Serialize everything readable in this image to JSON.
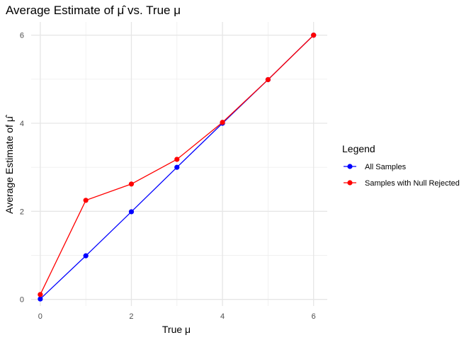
{
  "chart_data": {
    "type": "line",
    "title": "Average Estimate of μ̂ vs. True μ",
    "xlabel": "True μ",
    "ylabel": "Average Estimate of μ̂",
    "xlim": [
      -0.2,
      6.3
    ],
    "ylim": [
      -0.15,
      6.3
    ],
    "xticks": [
      0,
      2,
      4,
      6
    ],
    "yticks": [
      0,
      2,
      4,
      6
    ],
    "grid": true,
    "legend": {
      "title": "Legend",
      "position": "right"
    },
    "series": [
      {
        "name": "All Samples",
        "color": "#0000ff",
        "x": [
          0,
          1,
          2,
          3,
          4,
          5,
          6
        ],
        "y": [
          0.01,
          0.99,
          1.99,
          3.0,
          4.0,
          4.99,
          6.0
        ]
      },
      {
        "name": "Samples with Null Rejected",
        "color": "#ff0000",
        "x": [
          0,
          1,
          2,
          3,
          4,
          5,
          6
        ],
        "y": [
          0.11,
          2.25,
          2.62,
          3.18,
          4.02,
          4.99,
          6.0
        ]
      }
    ]
  }
}
